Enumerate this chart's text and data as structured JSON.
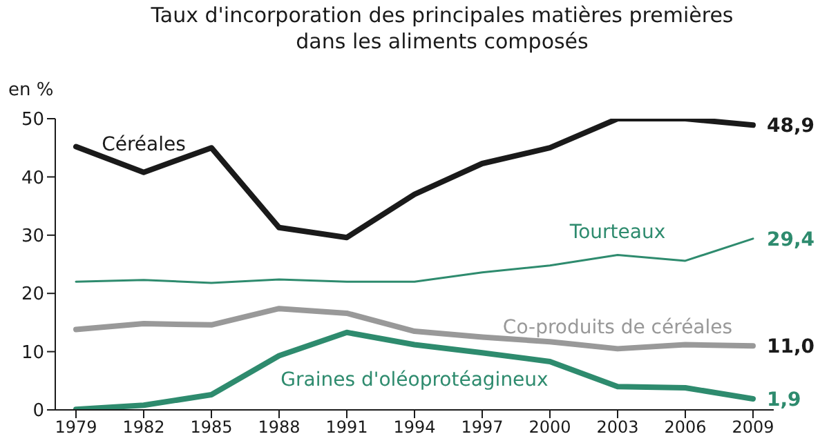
{
  "chart_data": {
    "type": "line",
    "title": "Taux d'incorporation des principales matières premières\ndans les aliments composés",
    "ylabel": "en %",
    "categories": [
      "1979",
      "1982",
      "1985",
      "1988",
      "1991",
      "1994",
      "1997",
      "2000",
      "2003",
      "2006",
      "2009"
    ],
    "series": [
      {
        "name": "Céréales",
        "color": "#1a1a1a",
        "values": [
          45.2,
          40.8,
          45,
          31.3,
          29.6,
          37,
          42.3,
          45,
          50,
          50,
          48.9
        ],
        "value_labels": [
          null,
          null,
          null,
          null,
          null,
          null,
          null,
          null,
          null,
          null,
          "48,9"
        ]
      },
      {
        "name": "Tourteaux",
        "color": "#2e8b6e",
        "values": [
          22,
          22.3,
          21.8,
          22.4,
          22,
          22,
          23.6,
          24.8,
          26.6,
          25.6,
          29.4
        ],
        "value_labels": [
          null,
          null,
          null,
          null,
          null,
          null,
          null,
          null,
          null,
          null,
          "29,4"
        ]
      },
      {
        "name": "Co-produits de céréales",
        "color": "#999999",
        "values": [
          13.8,
          14.8,
          14.6,
          17.4,
          16.6,
          13.5,
          12.5,
          11.7,
          10.5,
          11.2,
          11.0
        ],
        "value_labels": [
          null,
          null,
          null,
          null,
          null,
          null,
          null,
          null,
          null,
          null,
          "11,0"
        ]
      },
      {
        "name": "Graines d'oléoprotéagineux",
        "color": "#2e8b6e",
        "values": [
          0.1,
          0.8,
          2.6,
          9.3,
          13.3,
          11.2,
          9.8,
          8.3,
          4,
          3.8,
          1.9
        ],
        "value_labels": [
          null,
          null,
          null,
          null,
          null,
          null,
          null,
          null,
          null,
          null,
          "1,9"
        ]
      }
    ],
    "ylim": [
      0,
      50
    ],
    "yticks": [
      0,
      10,
      20,
      30,
      40,
      50
    ],
    "grid": false,
    "marker": "none",
    "line_style": "solid"
  }
}
